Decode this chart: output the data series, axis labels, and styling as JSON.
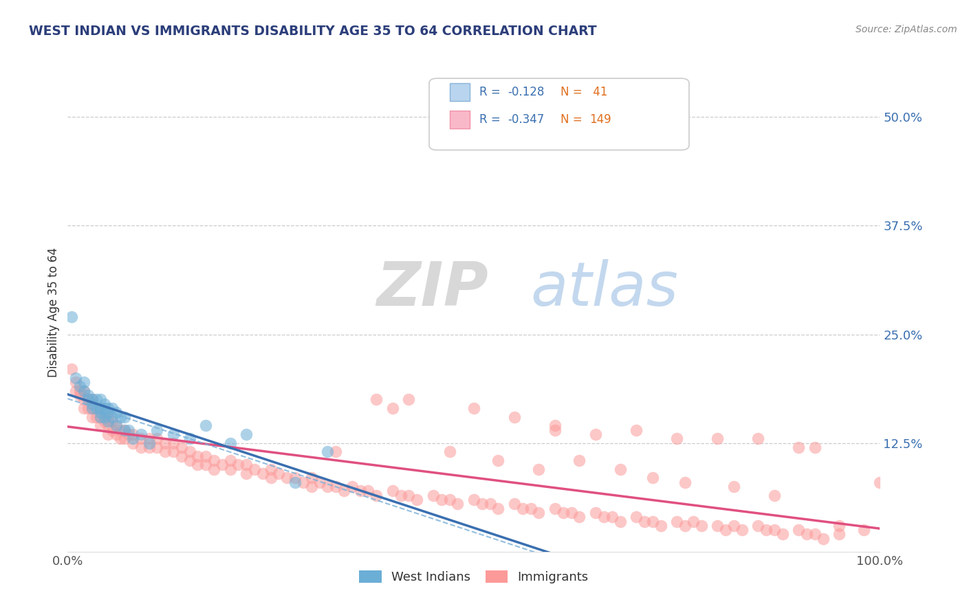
{
  "title": "WEST INDIAN VS IMMIGRANTS DISABILITY AGE 35 TO 64 CORRELATION CHART",
  "source": "Source: ZipAtlas.com",
  "ylabel": "Disability Age 35 to 64",
  "legend_label1": "West Indians",
  "legend_label2": "Immigrants",
  "r1": -0.128,
  "n1": 41,
  "r2": -0.347,
  "n2": 149,
  "xlim": [
    0,
    1.0
  ],
  "ylim": [
    0.0,
    0.55
  ],
  "xtick_labels": [
    "0.0%",
    "100.0%"
  ],
  "ytick_labels": [
    "12.5%",
    "25.0%",
    "37.5%",
    "50.0%"
  ],
  "ytick_values": [
    0.125,
    0.25,
    0.375,
    0.5
  ],
  "background_color": "#ffffff",
  "grid_color": "#cccccc",
  "color1": "#6baed6",
  "color2": "#fb9a99",
  "title_color": "#2c3e7a",
  "source_color": "#888888",
  "wi_x": [
    0.005,
    0.01,
    0.015,
    0.02,
    0.02,
    0.025,
    0.025,
    0.03,
    0.03,
    0.03,
    0.035,
    0.035,
    0.04,
    0.04,
    0.04,
    0.04,
    0.045,
    0.045,
    0.045,
    0.05,
    0.05,
    0.05,
    0.055,
    0.055,
    0.06,
    0.06,
    0.065,
    0.07,
    0.07,
    0.075,
    0.08,
    0.09,
    0.1,
    0.11,
    0.13,
    0.15,
    0.17,
    0.2,
    0.22,
    0.28,
    0.32
  ],
  "wi_y": [
    0.27,
    0.2,
    0.19,
    0.195,
    0.185,
    0.18,
    0.175,
    0.175,
    0.17,
    0.165,
    0.175,
    0.165,
    0.175,
    0.165,
    0.16,
    0.155,
    0.17,
    0.165,
    0.155,
    0.165,
    0.16,
    0.15,
    0.165,
    0.155,
    0.16,
    0.145,
    0.155,
    0.155,
    0.14,
    0.14,
    0.13,
    0.135,
    0.125,
    0.14,
    0.135,
    0.13,
    0.145,
    0.125,
    0.135,
    0.08,
    0.115
  ],
  "im_x": [
    0.005,
    0.01,
    0.01,
    0.015,
    0.015,
    0.02,
    0.02,
    0.02,
    0.025,
    0.025,
    0.03,
    0.03,
    0.03,
    0.035,
    0.035,
    0.04,
    0.04,
    0.04,
    0.045,
    0.045,
    0.05,
    0.05,
    0.05,
    0.055,
    0.055,
    0.06,
    0.06,
    0.065,
    0.065,
    0.07,
    0.07,
    0.075,
    0.08,
    0.08,
    0.09,
    0.09,
    0.1,
    0.1,
    0.11,
    0.11,
    0.12,
    0.12,
    0.13,
    0.13,
    0.14,
    0.14,
    0.15,
    0.15,
    0.16,
    0.16,
    0.17,
    0.17,
    0.18,
    0.18,
    0.19,
    0.2,
    0.2,
    0.21,
    0.22,
    0.22,
    0.23,
    0.24,
    0.25,
    0.25,
    0.26,
    0.27,
    0.28,
    0.29,
    0.3,
    0.3,
    0.31,
    0.32,
    0.33,
    0.34,
    0.35,
    0.36,
    0.37,
    0.38,
    0.4,
    0.41,
    0.42,
    0.43,
    0.45,
    0.46,
    0.47,
    0.48,
    0.5,
    0.51,
    0.52,
    0.53,
    0.55,
    0.56,
    0.57,
    0.58,
    0.6,
    0.61,
    0.62,
    0.63,
    0.65,
    0.66,
    0.67,
    0.68,
    0.7,
    0.71,
    0.72,
    0.73,
    0.75,
    0.76,
    0.77,
    0.78,
    0.8,
    0.81,
    0.82,
    0.83,
    0.85,
    0.86,
    0.87,
    0.88,
    0.9,
    0.91,
    0.92,
    0.93,
    0.95,
    0.6,
    0.7,
    0.75,
    0.8,
    0.85,
    0.9,
    0.92,
    0.42,
    0.5,
    0.55,
    0.6,
    0.65,
    0.38,
    0.4,
    0.95,
    0.98,
    1.0,
    0.33,
    0.47,
    0.53,
    0.63,
    0.58,
    0.68,
    0.72,
    0.76,
    0.82,
    0.87
  ],
  "im_y": [
    0.21,
    0.195,
    0.185,
    0.185,
    0.18,
    0.185,
    0.175,
    0.165,
    0.175,
    0.165,
    0.175,
    0.165,
    0.155,
    0.165,
    0.155,
    0.165,
    0.155,
    0.145,
    0.16,
    0.15,
    0.155,
    0.145,
    0.135,
    0.15,
    0.14,
    0.145,
    0.135,
    0.14,
    0.13,
    0.14,
    0.13,
    0.135,
    0.135,
    0.125,
    0.13,
    0.12,
    0.13,
    0.12,
    0.13,
    0.12,
    0.125,
    0.115,
    0.125,
    0.115,
    0.12,
    0.11,
    0.115,
    0.105,
    0.11,
    0.1,
    0.11,
    0.1,
    0.105,
    0.095,
    0.1,
    0.105,
    0.095,
    0.1,
    0.1,
    0.09,
    0.095,
    0.09,
    0.095,
    0.085,
    0.09,
    0.085,
    0.085,
    0.08,
    0.085,
    0.075,
    0.08,
    0.075,
    0.075,
    0.07,
    0.075,
    0.07,
    0.07,
    0.065,
    0.07,
    0.065,
    0.065,
    0.06,
    0.065,
    0.06,
    0.06,
    0.055,
    0.06,
    0.055,
    0.055,
    0.05,
    0.055,
    0.05,
    0.05,
    0.045,
    0.05,
    0.045,
    0.045,
    0.04,
    0.045,
    0.04,
    0.04,
    0.035,
    0.04,
    0.035,
    0.035,
    0.03,
    0.035,
    0.03,
    0.035,
    0.03,
    0.03,
    0.025,
    0.03,
    0.025,
    0.03,
    0.025,
    0.025,
    0.02,
    0.025,
    0.02,
    0.02,
    0.015,
    0.02,
    0.14,
    0.14,
    0.13,
    0.13,
    0.13,
    0.12,
    0.12,
    0.175,
    0.165,
    0.155,
    0.145,
    0.135,
    0.175,
    0.165,
    0.03,
    0.025,
    0.08,
    0.115,
    0.115,
    0.105,
    0.105,
    0.095,
    0.095,
    0.085,
    0.08,
    0.075,
    0.065
  ]
}
